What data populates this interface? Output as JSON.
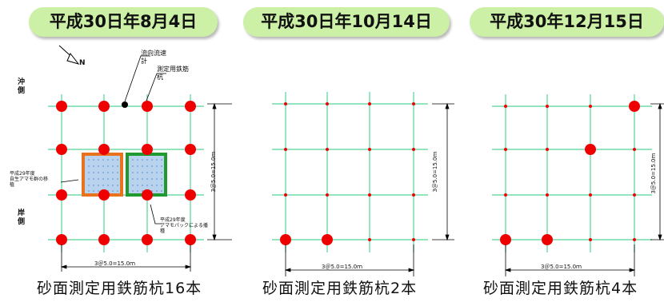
{
  "panels": [
    {
      "date": "平成30日年8月4日",
      "caption": "砂面測定用鉄筋杭16本",
      "dim_h": "3＠5.0=15.0ｍ",
      "dim_v": "3＠5.0=15.0ｍ",
      "north": "N",
      "label_flow": "流向流速\n計",
      "label_stake": "測定用鉄筋\n杭",
      "label_offshore": "沖\n側",
      "label_shore": "岸\n側",
      "label_plot1": "平成29年度\n自生アマモ群の移\n植",
      "label_plot2": "平成29年度\nアマモパックによる播\n種"
    },
    {
      "date": "平成30日年10月14日",
      "caption": "砂面測定用鉄筋杭2本",
      "dim_h": "3＠5.0=15.0ｍ",
      "dim_v": "3＠5.0=15.0ｍ"
    },
    {
      "date": "平成30年12月15日",
      "caption": "砂面測定用鉄筋杭4本",
      "dim_h": "3＠5.0=15.0ｍ",
      "dim_v": "3＠5.0=15.0ｍ"
    }
  ],
  "stakes": {
    "panel1": "all 16 grid intersections",
    "panel2": "2 bottom-left intersections",
    "panel3": "4 intersections"
  },
  "colors": {
    "pill": "#ccf0a6",
    "grid": "#55d49a",
    "stake": "#ee0000",
    "plot1_border": "#e8731e",
    "plot2_border": "#1e9a2e",
    "plot_fill": "#b9d2ee"
  }
}
